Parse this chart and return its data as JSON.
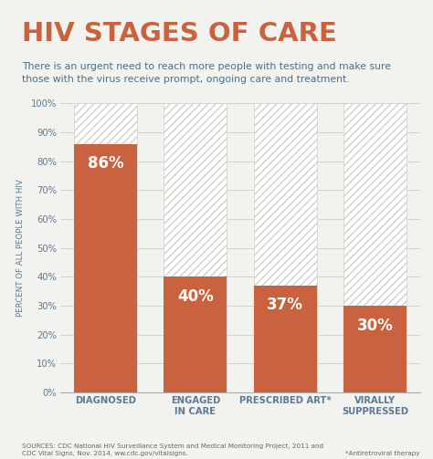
{
  "title": "HIV STAGES OF CARE",
  "subtitle": "There is an urgent need to reach more people with testing and make sure\nthose with the virus receive prompt, ongoing care and treatment.",
  "categories": [
    "DIAGNOSED",
    "ENGAGED\nIN CARE",
    "PRESCRIBED ART*",
    "VIRALLY\nSUPPRESSED"
  ],
  "values": [
    86,
    40,
    37,
    30
  ],
  "labels": [
    "86%",
    "40%",
    "37%",
    "30%"
  ],
  "bar_color": "#c9623f",
  "bg_color": "#f2f2ee",
  "hatch_bg_color": "#ffffff",
  "hatch_line_color": "#d0cfc9",
  "title_color": "#c9623f",
  "subtitle_color": "#4a6f8a",
  "ylabel": "PERCENT OF ALL PEOPLE WITH HIV",
  "ylabel_color": "#5a7a96",
  "tick_color": "#5a7a96",
  "label_color": "#ffffff",
  "source_text": "SOURCES: CDC National HIV Surveillance System and Medical Monitoring Project, 2011 and\nCDC Vital Signs, Nov. 2014, ww.cdc.gov/vitalsigns.",
  "footnote_text": "*Antiretroviral therapy",
  "ylim": [
    0,
    100
  ],
  "yticks": [
    0,
    10,
    20,
    30,
    40,
    50,
    60,
    70,
    80,
    90,
    100
  ]
}
